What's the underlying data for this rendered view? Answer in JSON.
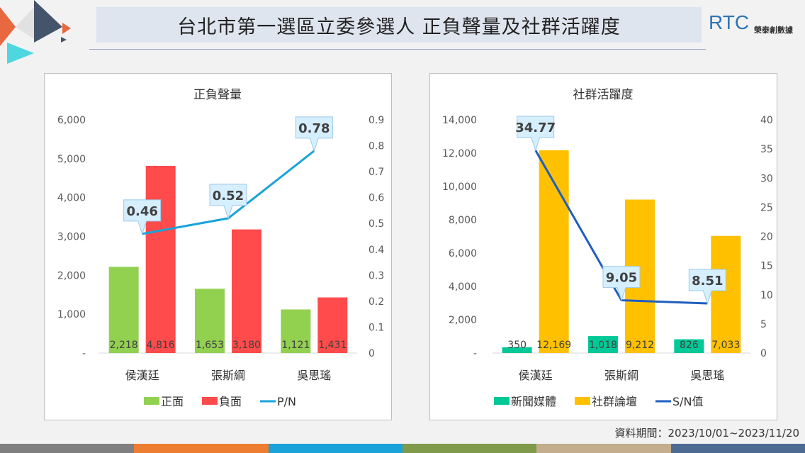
{
  "header": {
    "title": "台北市第一選區立委參選人 正負聲量及社群活躍度",
    "logo_text": "RTC",
    "logo_subtitle": "榮泰創數據"
  },
  "footer": {
    "period": "資料期間：2023/10/01~2023/11/20"
  },
  "colors": {
    "bottom_bar": [
      "#7f7f7f",
      "#ed7d31",
      "#1aa3d9",
      "#7e9a4a",
      "#c4ad8c",
      "#4d6a93"
    ]
  },
  "chart_data": [
    {
      "type": "bar+line",
      "title": "正負聲量",
      "categories": [
        "侯漢廷",
        "張斯綱",
        "吳思瑤"
      ],
      "series": [
        {
          "name": "正面",
          "kind": "bar",
          "color": "#92d050",
          "values": [
            2218,
            1653,
            1121
          ],
          "labels": [
            "2,218",
            "1,653",
            "1,121"
          ]
        },
        {
          "name": "負面",
          "kind": "bar",
          "color": "#ff4b4b",
          "values": [
            4816,
            3180,
            1431
          ],
          "labels": [
            "4,816",
            "3,180",
            "1,431"
          ]
        },
        {
          "name": "P/N",
          "kind": "line",
          "axis": "right",
          "color": "#1aa3d9",
          "values": [
            0.46,
            0.52,
            0.78
          ],
          "labels": [
            "0.46",
            "0.52",
            "0.78"
          ]
        }
      ],
      "ylim": [
        0,
        6000
      ],
      "yticks": [
        "-",
        "1,000",
        "2,000",
        "3,000",
        "4,000",
        "5,000",
        "6,000"
      ],
      "y2lim": [
        0,
        0.9
      ],
      "y2ticks": [
        "0",
        "0.1",
        "0.2",
        "0.3",
        "0.4",
        "0.5",
        "0.6",
        "0.7",
        "0.8",
        "0.9"
      ],
      "legend": "bottom"
    },
    {
      "type": "bar+line",
      "title": "社群活躍度",
      "categories": [
        "侯漢廷",
        "張斯綱",
        "吳思瑤"
      ],
      "series": [
        {
          "name": "新聞媒體",
          "kind": "bar",
          "color": "#00c896",
          "values": [
            350,
            1018,
            826
          ],
          "labels": [
            "350",
            "1,018",
            "826"
          ]
        },
        {
          "name": "社群論壇",
          "kind": "bar",
          "color": "#ffc000",
          "values": [
            12169,
            9212,
            7033
          ],
          "labels": [
            "12,169",
            "9,212",
            "7,033"
          ]
        },
        {
          "name": "S/N值",
          "kind": "line",
          "axis": "right",
          "color": "#1f5fbf",
          "values": [
            34.77,
            9.05,
            8.51
          ],
          "labels": [
            "34.77",
            "9.05",
            "8.51"
          ]
        }
      ],
      "ylim": [
        0,
        14000
      ],
      "yticks": [
        "-",
        "2,000",
        "4,000",
        "6,000",
        "8,000",
        "10,000",
        "12,000",
        "14,000"
      ],
      "y2lim": [
        0,
        40
      ],
      "y2ticks": [
        "0",
        "5",
        "10",
        "15",
        "20",
        "25",
        "30",
        "35",
        "40"
      ],
      "legend": "bottom"
    }
  ]
}
